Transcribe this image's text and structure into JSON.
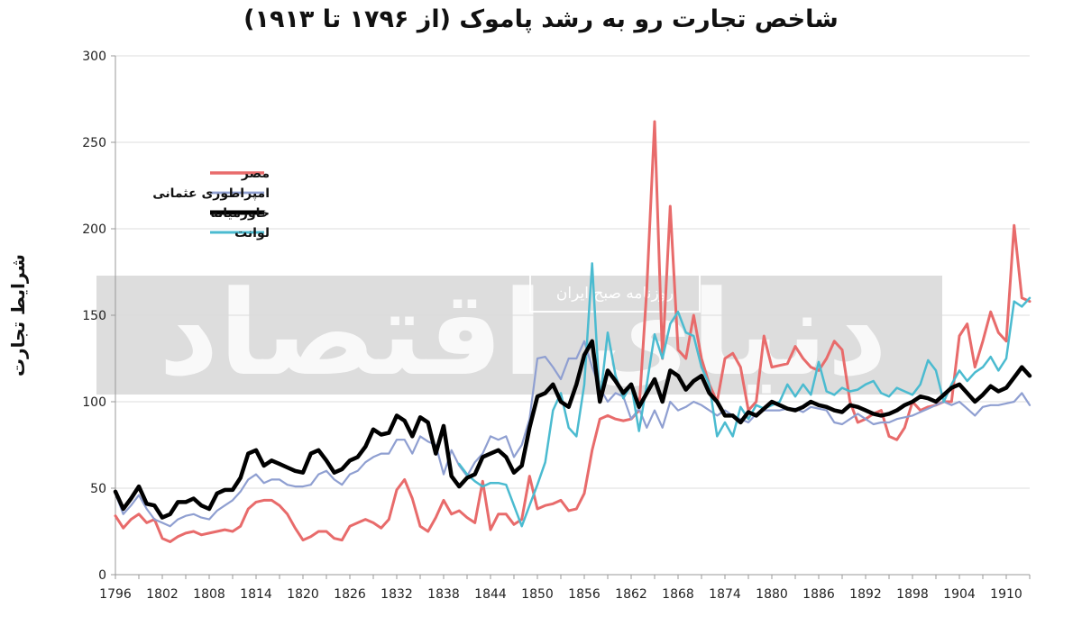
{
  "chart_data": {
    "type": "line",
    "title": "شاخص تجارت رو به رشد پاموک (از ۱۷۹۶ تا ۱۹۱۳)",
    "ylabel": "شرایط تجارت",
    "xlabel": "",
    "xlim": [
      1796,
      1913
    ],
    "ylim": [
      0,
      300
    ],
    "yticks": [
      0,
      50,
      100,
      150,
      200,
      250,
      300
    ],
    "xticks": [
      1796,
      1802,
      1808,
      1814,
      1820,
      1826,
      1832,
      1838,
      1844,
      1850,
      1856,
      1862,
      1868,
      1874,
      1880,
      1886,
      1892,
      1898,
      1904,
      1910
    ],
    "grid": true,
    "legend_position": "upper-left",
    "series": [
      {
        "name": "مصر",
        "color": "#e86b6b",
        "x": [
          1796,
          1797,
          1798,
          1799,
          1800,
          1801,
          1802,
          1803,
          1804,
          1805,
          1806,
          1807,
          1808,
          1809,
          1810,
          1811,
          1812,
          1813,
          1814,
          1815,
          1816,
          1817,
          1818,
          1819,
          1820,
          1821,
          1822,
          1823,
          1824,
          1825,
          1826,
          1827,
          1828,
          1829,
          1830,
          1831,
          1832,
          1833,
          1834,
          1835,
          1836,
          1837,
          1838,
          1839,
          1840,
          1841,
          1842,
          1843,
          1844,
          1845,
          1846,
          1847,
          1848,
          1849,
          1850,
          1851,
          1852,
          1853,
          1854,
          1855,
          1856,
          1857,
          1858,
          1859,
          1860,
          1861,
          1862,
          1863,
          1864,
          1865,
          1866,
          1867,
          1868,
          1869,
          1870,
          1871,
          1872,
          1873,
          1874,
          1875,
          1876,
          1877,
          1878,
          1879,
          1880,
          1881,
          1882,
          1883,
          1884,
          1885,
          1886,
          1887,
          1888,
          1889,
          1890,
          1891,
          1892,
          1893,
          1894,
          1895,
          1896,
          1897,
          1898,
          1899,
          1900,
          1901,
          1902,
          1903,
          1904,
          1905,
          1906,
          1907,
          1908,
          1909,
          1910,
          1911,
          1912,
          1913
        ],
        "y": [
          34,
          27,
          32,
          35,
          30,
          32,
          21,
          19,
          22,
          24,
          25,
          23,
          24,
          25,
          26,
          25,
          28,
          38,
          42,
          43,
          43,
          40,
          35,
          27,
          20,
          22,
          25,
          25,
          21,
          20,
          28,
          30,
          32,
          30,
          27,
          32,
          49,
          55,
          44,
          28,
          25,
          33,
          43,
          35,
          37,
          33,
          30,
          54,
          26,
          35,
          35,
          29,
          32,
          57,
          38,
          40,
          41,
          43,
          37,
          38,
          47,
          72,
          90,
          92,
          90,
          89,
          90,
          95,
          165,
          262,
          125,
          213,
          130,
          125,
          150,
          125,
          110,
          100,
          125,
          128,
          120,
          95,
          100,
          138,
          120,
          121,
          122,
          132,
          125,
          120,
          118,
          125,
          135,
          130,
          100,
          88,
          90,
          93,
          95,
          80,
          78,
          85,
          100,
          95,
          97,
          98,
          100,
          100,
          138,
          145,
          120,
          135,
          152,
          140,
          135,
          202,
          160,
          158
        ]
      },
      {
        "name": "امپراطوری عثمانی",
        "color": "#8f9fd1",
        "x": [
          1796,
          1797,
          1798,
          1799,
          1800,
          1801,
          1802,
          1803,
          1804,
          1805,
          1806,
          1807,
          1808,
          1809,
          1810,
          1811,
          1812,
          1813,
          1814,
          1815,
          1816,
          1817,
          1818,
          1819,
          1820,
          1821,
          1822,
          1823,
          1824,
          1825,
          1826,
          1827,
          1828,
          1829,
          1830,
          1831,
          1832,
          1833,
          1834,
          1835,
          1836,
          1837,
          1838,
          1839,
          1840,
          1841,
          1842,
          1843,
          1844,
          1845,
          1846,
          1847,
          1848,
          1849,
          1850,
          1851,
          1852,
          1853,
          1854,
          1855,
          1856,
          1857,
          1858,
          1859,
          1860,
          1861,
          1862,
          1863,
          1864,
          1865,
          1866,
          1867,
          1868,
          1869,
          1870,
          1871,
          1872,
          1873,
          1874,
          1875,
          1876,
          1877,
          1878,
          1879,
          1880,
          1881,
          1882,
          1883,
          1884,
          1885,
          1886,
          1887,
          1888,
          1889,
          1890,
          1891,
          1892,
          1893,
          1894,
          1895,
          1896,
          1897,
          1898,
          1899,
          1900,
          1901,
          1902,
          1903,
          1904,
          1905,
          1906,
          1907,
          1908,
          1909,
          1910,
          1911,
          1912,
          1913
        ],
        "y": [
          47,
          35,
          40,
          46,
          38,
          32,
          30,
          28,
          32,
          34,
          35,
          33,
          32,
          37,
          40,
          43,
          48,
          55,
          58,
          53,
          55,
          55,
          52,
          51,
          51,
          52,
          58,
          60,
          55,
          52,
          58,
          60,
          65,
          68,
          70,
          70,
          78,
          78,
          70,
          80,
          77,
          75,
          58,
          72,
          63,
          57,
          65,
          70,
          80,
          78,
          80,
          68,
          75,
          90,
          125,
          126,
          120,
          113,
          125,
          125,
          135,
          120,
          108,
          100,
          105,
          103,
          90,
          96,
          85,
          95,
          85,
          100,
          95,
          97,
          100,
          98,
          95,
          92,
          95,
          92,
          90,
          88,
          93,
          95,
          95,
          95,
          96,
          96,
          94,
          97,
          96,
          95,
          88,
          87,
          90,
          93,
          90,
          87,
          88,
          88,
          90,
          91,
          92,
          94,
          96,
          98,
          100,
          98,
          100,
          96,
          92,
          97,
          98,
          98,
          99,
          100,
          105,
          98
        ]
      },
      {
        "name": "خاورمیانه",
        "color": "#000000",
        "x": [
          1796,
          1797,
          1798,
          1799,
          1800,
          1801,
          1802,
          1803,
          1804,
          1805,
          1806,
          1807,
          1808,
          1809,
          1810,
          1811,
          1812,
          1813,
          1814,
          1815,
          1816,
          1817,
          1818,
          1819,
          1820,
          1821,
          1822,
          1823,
          1824,
          1825,
          1826,
          1827,
          1828,
          1829,
          1830,
          1831,
          1832,
          1833,
          1834,
          1835,
          1836,
          1837,
          1838,
          1839,
          1840,
          1841,
          1842,
          1843,
          1844,
          1845,
          1846,
          1847,
          1848,
          1849,
          1850,
          1851,
          1852,
          1853,
          1854,
          1855,
          1856,
          1857,
          1858,
          1859,
          1860,
          1861,
          1862,
          1863,
          1864,
          1865,
          1866,
          1867,
          1868,
          1869,
          1870,
          1871,
          1872,
          1873,
          1874,
          1875,
          1876,
          1877,
          1878,
          1879,
          1880,
          1881,
          1882,
          1883,
          1884,
          1885,
          1886,
          1887,
          1888,
          1889,
          1890,
          1891,
          1892,
          1893,
          1894,
          1895,
          1896,
          1897,
          1898,
          1899,
          1900,
          1901,
          1902,
          1903,
          1904,
          1905,
          1906,
          1907,
          1908,
          1909,
          1910,
          1911,
          1912,
          1913
        ],
        "y": [
          48,
          38,
          44,
          51,
          41,
          40,
          33,
          35,
          42,
          42,
          44,
          40,
          38,
          47,
          49,
          49,
          56,
          70,
          72,
          63,
          66,
          64,
          62,
          60,
          59,
          70,
          72,
          66,
          59,
          61,
          66,
          68,
          74,
          84,
          81,
          82,
          92,
          89,
          80,
          91,
          88,
          70,
          86,
          57,
          51,
          56,
          58,
          68,
          70,
          72,
          68,
          59,
          63,
          85,
          103,
          105,
          110,
          100,
          97,
          110,
          127,
          135,
          100,
          118,
          112,
          105,
          110,
          97,
          105,
          113,
          100,
          118,
          115,
          107,
          112,
          115,
          105,
          100,
          92,
          92,
          88,
          94,
          92,
          96,
          100,
          98,
          96,
          95,
          97,
          100,
          98,
          97,
          95,
          94,
          98,
          97,
          95,
          93,
          92,
          93,
          95,
          98,
          100,
          103,
          102,
          100,
          104,
          108,
          110,
          105,
          100,
          104,
          109,
          106,
          108,
          114,
          120,
          115
        ]
      },
      {
        "name": "لوانت",
        "color": "#4bbbd0",
        "x": [
          1840,
          1841,
          1842,
          1843,
          1844,
          1845,
          1846,
          1847,
          1848,
          1849,
          1850,
          1851,
          1852,
          1853,
          1854,
          1855,
          1856,
          1857,
          1858,
          1859,
          1860,
          1861,
          1862,
          1863,
          1864,
          1865,
          1866,
          1867,
          1868,
          1869,
          1870,
          1871,
          1872,
          1873,
          1874,
          1875,
          1876,
          1877,
          1878,
          1879,
          1880,
          1881,
          1882,
          1883,
          1884,
          1885,
          1886,
          1887,
          1888,
          1889,
          1890,
          1891,
          1892,
          1893,
          1894,
          1895,
          1896,
          1897,
          1898,
          1899,
          1900,
          1901,
          1902,
          1903,
          1904,
          1905,
          1906,
          1907,
          1908,
          1909,
          1910,
          1911,
          1912,
          1913
        ],
        "y": [
          64,
          58,
          54,
          51,
          53,
          53,
          52,
          40,
          28,
          40,
          52,
          65,
          95,
          105,
          85,
          80,
          110,
          180,
          100,
          140,
          115,
          102,
          110,
          83,
          110,
          139,
          125,
          145,
          152,
          140,
          138,
          120,
          110,
          80,
          88,
          80,
          97,
          90,
          98,
          96,
          98,
          100,
          110,
          103,
          110,
          104,
          123,
          106,
          104,
          108,
          106,
          107,
          110,
          112,
          105,
          103,
          108,
          106,
          104,
          110,
          124,
          118,
          100,
          110,
          118,
          112,
          117,
          120,
          126,
          118,
          125,
          158,
          155,
          160
        ]
      }
    ]
  },
  "watermark": {
    "main": "دنیای اقتصاد",
    "sub": "روزنامه صبح ایران"
  }
}
